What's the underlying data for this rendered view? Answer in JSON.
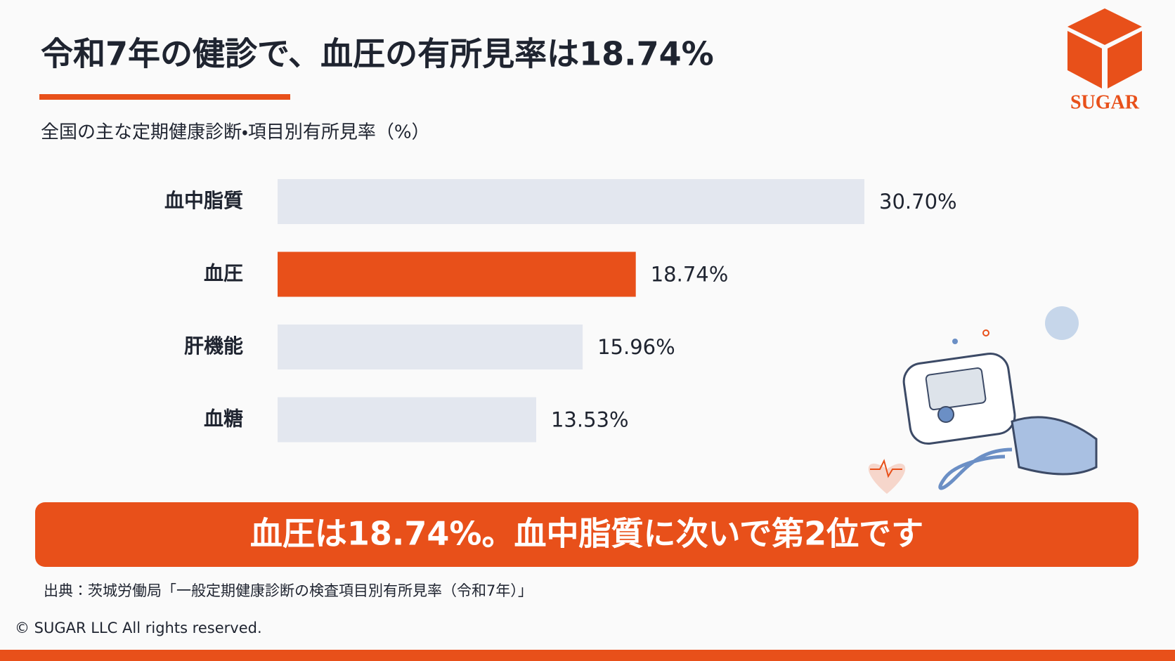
{
  "chart_data": {
    "type": "hbar",
    "title": "令和7年の健診で、血圧の有所見率は18.74%",
    "subtitle": "全国の主な定期健康診断・項目別有所見率（%）",
    "categories": [
      "血中脂質",
      "血圧",
      "肝機能",
      "血糖"
    ],
    "values": [
      30.7,
      18.74,
      15.96,
      13.53
    ],
    "value_labels": [
      "30.70%",
      "18.74%",
      "15.96%",
      "13.53%"
    ],
    "colors": [
      "#e3e7ef",
      "#e8501a",
      "#e3e7ef",
      "#e3e7ef"
    ],
    "accent_color": "#e8501a",
    "banner": "血圧は18.74%。血中脂質に次いで第2位です",
    "source": "出典：茨城労働局「一般定期健康診断の検査項目別有所見率（令和7年）」",
    "copyright": "© SUGAR LLC All rights reserved.",
    "logo": "SUGAR"
  }
}
